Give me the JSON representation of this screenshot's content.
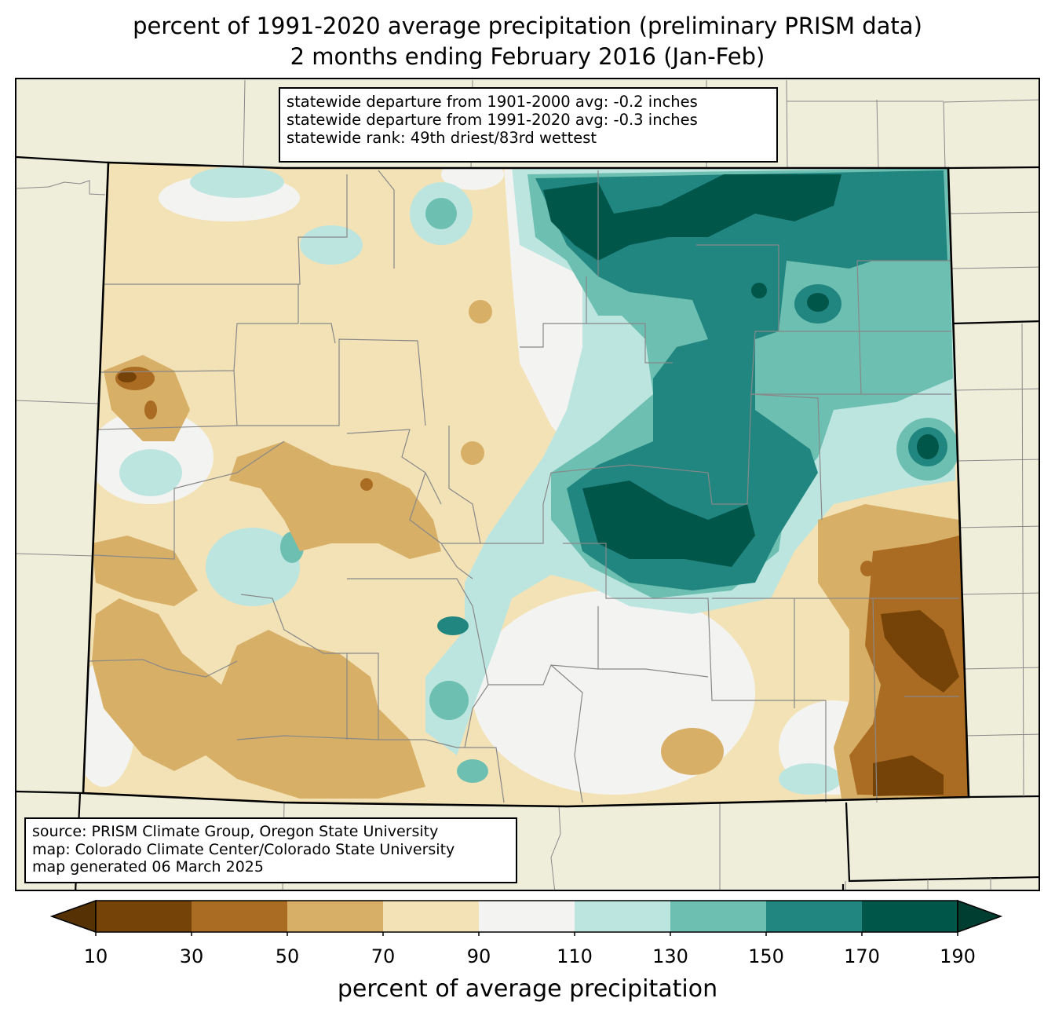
{
  "title": {
    "line1": "percent of 1991-2020 average precipitation (preliminary PRISM data)",
    "line2": "2 months ending February 2016 (Jan-Feb)"
  },
  "stats": {
    "line1": "statewide departure from 1901-2000 avg: -0.2 inches",
    "line2": "statewide departure from 1991-2020 avg: -0.3 inches",
    "line3": "statewide rank: 49th driest/83rd wettest"
  },
  "source": {
    "line1": "source: PRISM Climate Group, Oregon State University",
    "line2": "map: Colorado Climate Center/Colorado State University",
    "line3": "map generated 06 March 2025"
  },
  "colorbar": {
    "label": "percent of average precipitation",
    "ticks": [
      "10",
      "30",
      "50",
      "70",
      "90",
      "110",
      "130",
      "150",
      "170",
      "190"
    ],
    "bins": [
      {
        "range": "10-30",
        "color": "#754208"
      },
      {
        "range": "30-50",
        "color": "#aa6b22"
      },
      {
        "range": "50-70",
        "color": "#d7af67"
      },
      {
        "range": "70-90",
        "color": "#f3e2b6"
      },
      {
        "range": "90-110",
        "color": "#f3f4f2"
      },
      {
        "range": "110-130",
        "color": "#bde5e0"
      },
      {
        "range": "130-150",
        "color": "#6dbfb1"
      },
      {
        "range": "150-170",
        "color": "#218680"
      },
      {
        "range": "170-190",
        "color": "#01564a"
      }
    ],
    "under_color": "#553104",
    "over_color": "#013e32"
  },
  "colors": {
    "background": "#efeedb",
    "county_lines": "#888888",
    "state_lines": "#000000"
  }
}
